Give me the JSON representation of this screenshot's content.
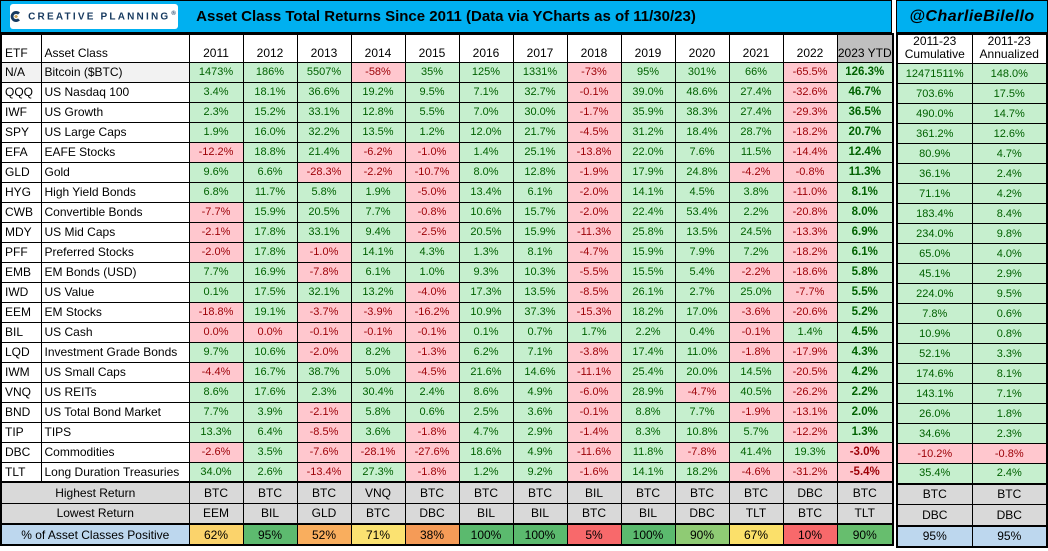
{
  "banner": {
    "logo_text": "CREATIVE PLANNING",
    "logo_mark": "®",
    "title": "Asset Class Total Returns Since 2011 (Data via YCharts as of 11/30/23)",
    "handle": "@CharlieBilello"
  },
  "colors": {
    "banner_blue": "#00B0F0",
    "positive_bg": "#C6EFCE",
    "positive_text": "#006100",
    "negative_bg": "#FFC7CE",
    "negative_text": "#9C0006",
    "ytd_header_bg": "#BFBFBF",
    "summary_gray_bg": "#D9D9D9",
    "label_blue_bg": "#BDD7EE",
    "logo_navy": "#16395F",
    "logo_gold": "#C8A357"
  },
  "chart_data": {
    "type": "table",
    "title": "Asset Class Total Returns Since 2011 (Data via YCharts as of 11/30/23)",
    "etf_header": "ETF",
    "asset_class_header": "Asset Class",
    "year_headers": [
      "2011",
      "2012",
      "2013",
      "2014",
      "2015",
      "2016",
      "2017",
      "2018",
      "2019",
      "2020",
      "2021",
      "2022",
      "2023 YTD"
    ],
    "right_headers": [
      [
        "2011-23",
        "Cumulative"
      ],
      [
        "2011-23",
        "Annualized"
      ]
    ],
    "rows": [
      {
        "etf": "N/A",
        "asset_class": "Bitcoin ($BTC)",
        "highlight": true,
        "values": [
          "1473%",
          "186%",
          "5507%",
          "-58%",
          "35%",
          "125%",
          "1331%",
          "-73%",
          "95%",
          "301%",
          "66%",
          "-65.5%",
          "126.3%"
        ],
        "cumulative": "12471511%",
        "annualized": "148.0%"
      },
      {
        "etf": "QQQ",
        "asset_class": "US Nasdaq 100",
        "values": [
          "3.4%",
          "18.1%",
          "36.6%",
          "19.2%",
          "9.5%",
          "7.1%",
          "32.7%",
          "-0.1%",
          "39.0%",
          "48.6%",
          "27.4%",
          "-32.6%",
          "46.7%"
        ],
        "cumulative": "703.6%",
        "annualized": "17.5%"
      },
      {
        "etf": "IWF",
        "asset_class": "US Growth",
        "values": [
          "2.3%",
          "15.2%",
          "33.1%",
          "12.8%",
          "5.5%",
          "7.0%",
          "30.0%",
          "-1.7%",
          "35.9%",
          "38.3%",
          "27.4%",
          "-29.3%",
          "36.5%"
        ],
        "cumulative": "490.0%",
        "annualized": "14.7%"
      },
      {
        "etf": "SPY",
        "asset_class": "US Large Caps",
        "values": [
          "1.9%",
          "16.0%",
          "32.2%",
          "13.5%",
          "1.2%",
          "12.0%",
          "21.7%",
          "-4.5%",
          "31.2%",
          "18.4%",
          "28.7%",
          "-18.2%",
          "20.7%"
        ],
        "cumulative": "361.2%",
        "annualized": "12.6%"
      },
      {
        "etf": "EFA",
        "asset_class": "EAFE Stocks",
        "values": [
          "-12.2%",
          "18.8%",
          "21.4%",
          "-6.2%",
          "-1.0%",
          "1.4%",
          "25.1%",
          "-13.8%",
          "22.0%",
          "7.6%",
          "11.5%",
          "-14.4%",
          "12.4%"
        ],
        "cumulative": "80.9%",
        "annualized": "4.7%"
      },
      {
        "etf": "GLD",
        "asset_class": "Gold",
        "values": [
          "9.6%",
          "6.6%",
          "-28.3%",
          "-2.2%",
          "-10.7%",
          "8.0%",
          "12.8%",
          "-1.9%",
          "17.9%",
          "24.8%",
          "-4.2%",
          "-0.8%",
          "11.3%"
        ],
        "cumulative": "36.1%",
        "annualized": "2.4%"
      },
      {
        "etf": "HYG",
        "asset_class": "High Yield Bonds",
        "values": [
          "6.8%",
          "11.7%",
          "5.8%",
          "1.9%",
          "-5.0%",
          "13.4%",
          "6.1%",
          "-2.0%",
          "14.1%",
          "4.5%",
          "3.8%",
          "-11.0%",
          "8.1%"
        ],
        "cumulative": "71.1%",
        "annualized": "4.2%"
      },
      {
        "etf": "CWB",
        "asset_class": "Convertible Bonds",
        "values": [
          "-7.7%",
          "15.9%",
          "20.5%",
          "7.7%",
          "-0.8%",
          "10.6%",
          "15.7%",
          "-2.0%",
          "22.4%",
          "53.4%",
          "2.2%",
          "-20.8%",
          "8.0%"
        ],
        "cumulative": "183.4%",
        "annualized": "8.4%"
      },
      {
        "etf": "MDY",
        "asset_class": "US Mid Caps",
        "values": [
          "-2.1%",
          "17.8%",
          "33.1%",
          "9.4%",
          "-2.5%",
          "20.5%",
          "15.9%",
          "-11.3%",
          "25.8%",
          "13.5%",
          "24.5%",
          "-13.3%",
          "6.9%"
        ],
        "cumulative": "234.0%",
        "annualized": "9.8%"
      },
      {
        "etf": "PFF",
        "asset_class": "Preferred Stocks",
        "values": [
          "-2.0%",
          "17.8%",
          "-1.0%",
          "14.1%",
          "4.3%",
          "1.3%",
          "8.1%",
          "-4.7%",
          "15.9%",
          "7.9%",
          "7.2%",
          "-18.2%",
          "6.1%"
        ],
        "cumulative": "65.0%",
        "annualized": "4.0%"
      },
      {
        "etf": "EMB",
        "asset_class": "EM Bonds (USD)",
        "values": [
          "7.7%",
          "16.9%",
          "-7.8%",
          "6.1%",
          "1.0%",
          "9.3%",
          "10.3%",
          "-5.5%",
          "15.5%",
          "5.4%",
          "-2.2%",
          "-18.6%",
          "5.8%"
        ],
        "cumulative": "45.1%",
        "annualized": "2.9%"
      },
      {
        "etf": "IWD",
        "asset_class": "US Value",
        "values": [
          "0.1%",
          "17.5%",
          "32.1%",
          "13.2%",
          "-4.0%",
          "17.3%",
          "13.5%",
          "-8.5%",
          "26.1%",
          "2.7%",
          "25.0%",
          "-7.7%",
          "5.5%"
        ],
        "cumulative": "224.0%",
        "annualized": "9.5%"
      },
      {
        "etf": "EEM",
        "asset_class": "EM Stocks",
        "values": [
          "-18.8%",
          "19.1%",
          "-3.7%",
          "-3.9%",
          "-16.2%",
          "10.9%",
          "37.3%",
          "-15.3%",
          "18.2%",
          "17.0%",
          "-3.6%",
          "-20.6%",
          "5.2%"
        ],
        "cumulative": "7.8%",
        "annualized": "0.6%"
      },
      {
        "etf": "BIL",
        "asset_class": "US Cash",
        "values": [
          "0.0%",
          "0.0%",
          "-0.1%",
          "-0.1%",
          "-0.1%",
          "0.1%",
          "0.7%",
          "1.7%",
          "2.2%",
          "0.4%",
          "-0.1%",
          "1.4%",
          "4.5%"
        ],
        "cumulative": "10.9%",
        "annualized": "0.8%"
      },
      {
        "etf": "LQD",
        "asset_class": "Investment Grade Bonds",
        "values": [
          "9.7%",
          "10.6%",
          "-2.0%",
          "8.2%",
          "-1.3%",
          "6.2%",
          "7.1%",
          "-3.8%",
          "17.4%",
          "11.0%",
          "-1.8%",
          "-17.9%",
          "4.3%"
        ],
        "cumulative": "52.1%",
        "annualized": "3.3%"
      },
      {
        "etf": "IWM",
        "asset_class": "US Small Caps",
        "values": [
          "-4.4%",
          "16.7%",
          "38.7%",
          "5.0%",
          "-4.5%",
          "21.6%",
          "14.6%",
          "-11.1%",
          "25.4%",
          "20.0%",
          "14.5%",
          "-20.5%",
          "4.2%"
        ],
        "cumulative": "174.6%",
        "annualized": "8.1%"
      },
      {
        "etf": "VNQ",
        "asset_class": "US REITs",
        "values": [
          "8.6%",
          "17.6%",
          "2.3%",
          "30.4%",
          "2.4%",
          "8.6%",
          "4.9%",
          "-6.0%",
          "28.9%",
          "-4.7%",
          "40.5%",
          "-26.2%",
          "2.2%"
        ],
        "cumulative": "143.1%",
        "annualized": "7.1%"
      },
      {
        "etf": "BND",
        "asset_class": "US Total Bond Market",
        "values": [
          "7.7%",
          "3.9%",
          "-2.1%",
          "5.8%",
          "0.6%",
          "2.5%",
          "3.6%",
          "-0.1%",
          "8.8%",
          "7.7%",
          "-1.9%",
          "-13.1%",
          "2.0%"
        ],
        "cumulative": "26.0%",
        "annualized": "1.8%"
      },
      {
        "etf": "TIP",
        "asset_class": "TIPS",
        "values": [
          "13.3%",
          "6.4%",
          "-8.5%",
          "3.6%",
          "-1.8%",
          "4.7%",
          "2.9%",
          "-1.4%",
          "8.3%",
          "10.8%",
          "5.7%",
          "-12.2%",
          "1.3%"
        ],
        "cumulative": "34.6%",
        "annualized": "2.3%"
      },
      {
        "etf": "DBC",
        "asset_class": "Commodities",
        "values": [
          "-2.6%",
          "3.5%",
          "-7.6%",
          "-28.1%",
          "-27.6%",
          "18.6%",
          "4.9%",
          "-11.6%",
          "11.8%",
          "-7.8%",
          "41.4%",
          "19.3%",
          "-3.0%"
        ],
        "cumulative": "-10.2%",
        "annualized": "-0.8%"
      },
      {
        "etf": "TLT",
        "asset_class": "Long Duration Treasuries",
        "values": [
          "34.0%",
          "2.6%",
          "-13.4%",
          "27.3%",
          "-1.8%",
          "1.2%",
          "9.2%",
          "-1.6%",
          "14.1%",
          "18.2%",
          "-4.6%",
          "-31.2%",
          "-5.4%"
        ],
        "cumulative": "35.4%",
        "annualized": "2.4%"
      }
    ],
    "summary": {
      "highest_label": "Highest Return",
      "highest": [
        "BTC",
        "BTC",
        "BTC",
        "VNQ",
        "BTC",
        "BTC",
        "BTC",
        "BIL",
        "BTC",
        "BTC",
        "BTC",
        "DBC",
        "BTC"
      ],
      "highest_right": [
        "BTC",
        "BTC"
      ],
      "lowest_label": "Lowest Return",
      "lowest": [
        "EEM",
        "BIL",
        "GLD",
        "BTC",
        "DBC",
        "BIL",
        "BIL",
        "BTC",
        "BIL",
        "DBC",
        "TLT",
        "BTC",
        "TLT"
      ],
      "lowest_right": [
        "DBC",
        "DBC"
      ],
      "positive_label": "% of Asset Classes Positive",
      "positive": [
        {
          "value": "62%",
          "color": "#FBD36B"
        },
        {
          "value": "95%",
          "color": "#5DBA6F"
        },
        {
          "value": "52%",
          "color": "#F9AE5E"
        },
        {
          "value": "71%",
          "color": "#FBE271"
        },
        {
          "value": "38%",
          "color": "#F59B57"
        },
        {
          "value": "100%",
          "color": "#5BBA6E"
        },
        {
          "value": "100%",
          "color": "#5BBA6E"
        },
        {
          "value": "5%",
          "color": "#F8696B"
        },
        {
          "value": "100%",
          "color": "#5BBA6E"
        },
        {
          "value": "90%",
          "color": "#8FCB74"
        },
        {
          "value": "67%",
          "color": "#FBE06A"
        },
        {
          "value": "10%",
          "color": "#F8696B"
        },
        {
          "value": "90%",
          "color": "#67BE6E"
        }
      ],
      "positive_right": [
        {
          "value": "95%",
          "color": "#BDD7EE"
        },
        {
          "value": "95%",
          "color": "#BDD7EE"
        }
      ]
    }
  }
}
